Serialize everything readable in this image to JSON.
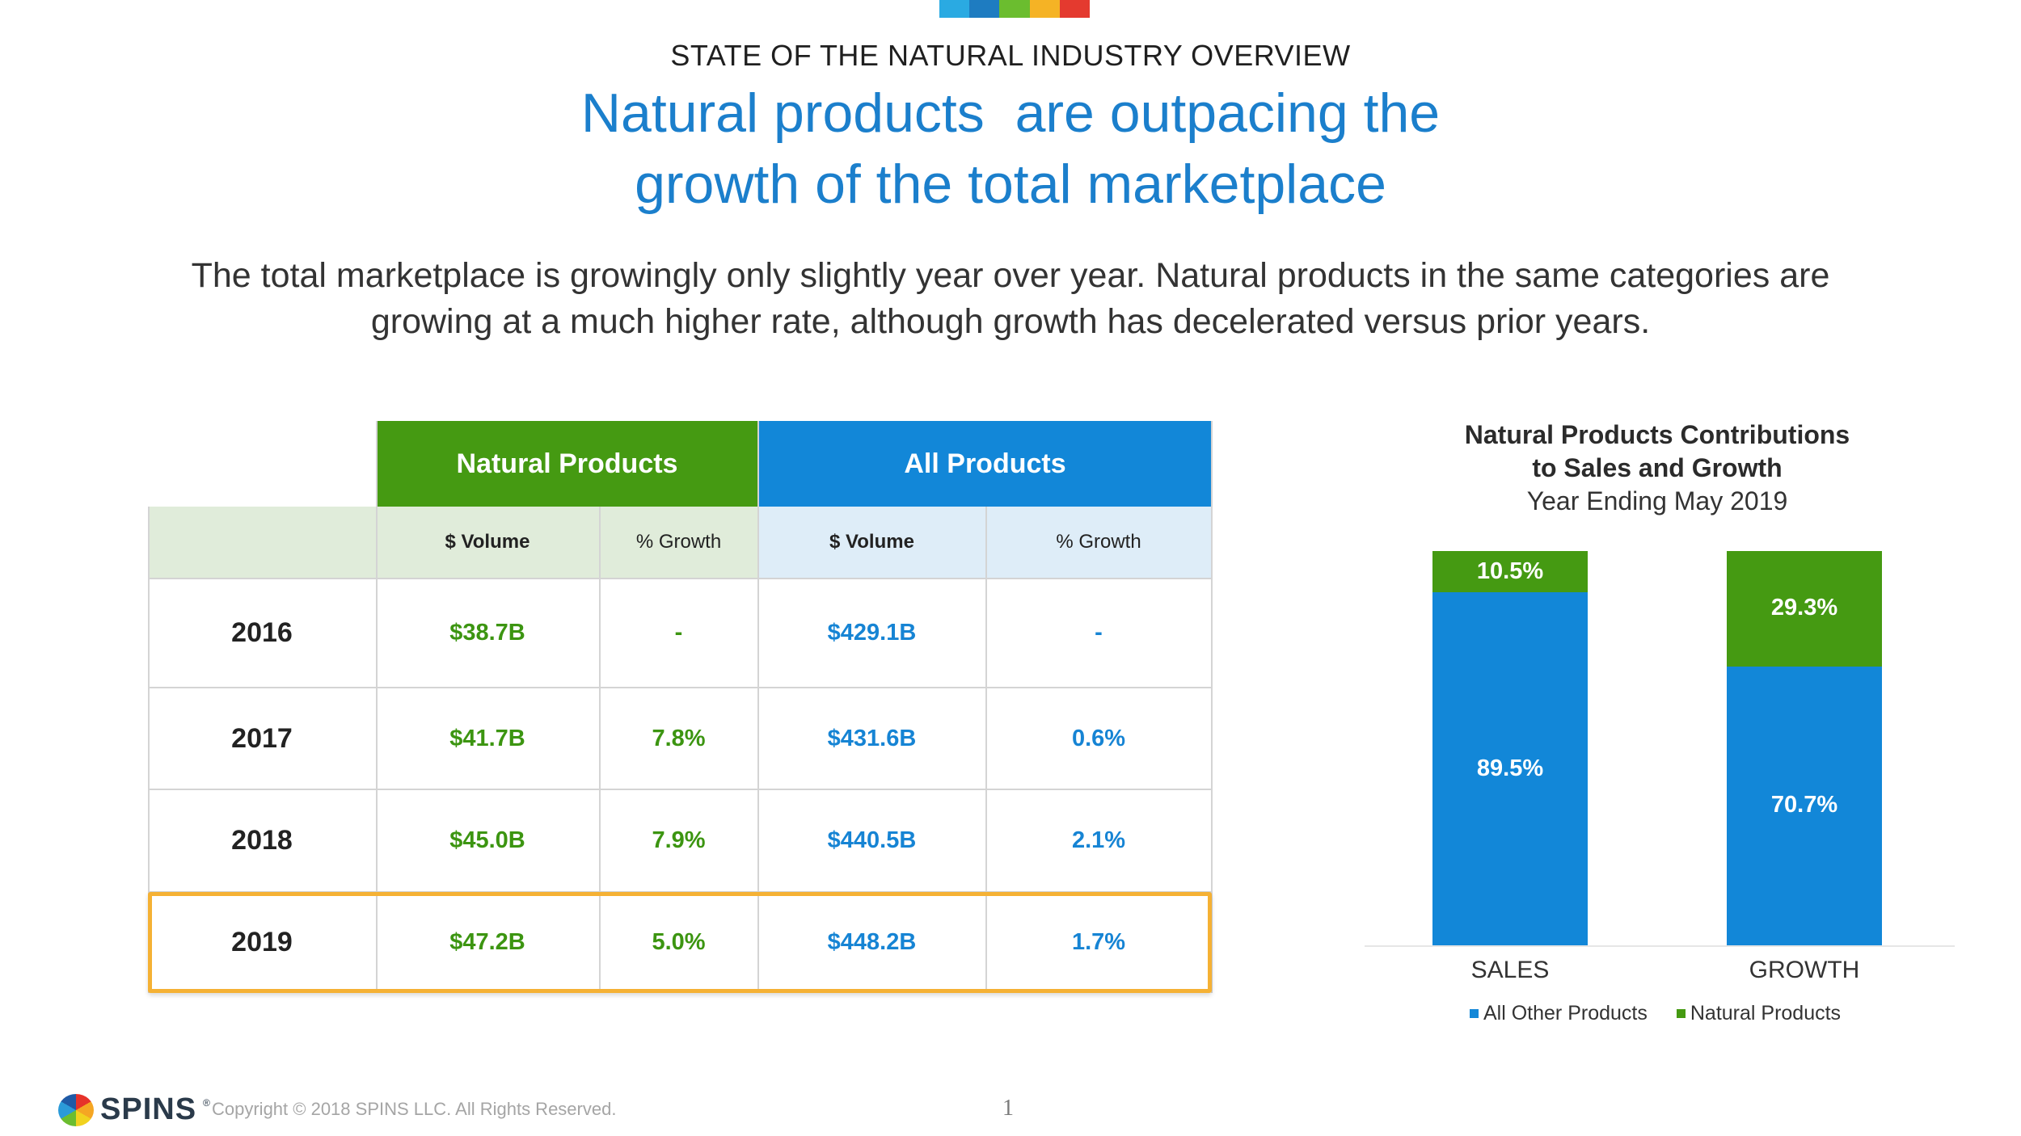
{
  "header": {
    "kicker": "STATE OF THE NATURAL INDUSTRY OVERVIEW",
    "title_line1": "Natural products  are outpacing the",
    "title_line2": "growth of the total marketplace",
    "subtitle_line1": "The total marketplace is growingly only slightly year over year. Natural products in the same categories are",
    "subtitle_line2": "growing at a much higher rate, although growth has decelerated versus prior years.",
    "colorbar": [
      "#2aaae2",
      "#1e7cc1",
      "#6bbd2f",
      "#f5b325",
      "#e43a2f"
    ]
  },
  "table": {
    "groups": [
      "Natural Products",
      "All Products"
    ],
    "subheaders": [
      "$ Volume",
      "% Growth",
      "$ Volume",
      "% Growth"
    ],
    "rows": [
      {
        "year": "2016",
        "nat_vol": "$38.7B",
        "nat_growth": "-",
        "all_vol": "$429.1B",
        "all_growth": "-"
      },
      {
        "year": "2017",
        "nat_vol": "$41.7B",
        "nat_growth": "7.8%",
        "all_vol": "$431.6B",
        "all_growth": "0.6%"
      },
      {
        "year": "2018",
        "nat_vol": "$45.0B",
        "nat_growth": "7.9%",
        "all_vol": "$440.5B",
        "all_growth": "2.1%"
      },
      {
        "year": "2019",
        "nat_vol": "$47.2B",
        "nat_growth": "5.0%",
        "all_vol": "$448.2B",
        "all_growth": "1.7%"
      }
    ],
    "highlighted_year": "2019",
    "colors": {
      "natural": "#459a12",
      "all": "#1287d8",
      "natural_light": "#e0ecda",
      "all_light": "#deedf8",
      "highlight": "#f5b134"
    }
  },
  "chart_data": {
    "type": "bar",
    "stacked": true,
    "title_line1": "Natural Products Contributions",
    "title_line2": "to Sales and Growth",
    "subtitle": "Year Ending May 2019",
    "categories": [
      "SALES",
      "GROWTH"
    ],
    "series": [
      {
        "name": "All Other Products",
        "values": [
          89.5,
          70.7
        ],
        "labels": [
          "89.5%",
          "70.7%"
        ],
        "color": "#1287d8"
      },
      {
        "name": "Natural Products",
        "values": [
          10.5,
          29.3
        ],
        "labels": [
          "10.5%",
          "29.3%"
        ],
        "color": "#459a12"
      }
    ],
    "ylim": [
      0,
      100
    ],
    "legend_position": "bottom"
  },
  "footer": {
    "logo_text": "SPINS",
    "logo_tm": "®",
    "copyright": "Copyright © 2018 SPINS LLC. All Rights Reserved.",
    "page_number": "1"
  }
}
